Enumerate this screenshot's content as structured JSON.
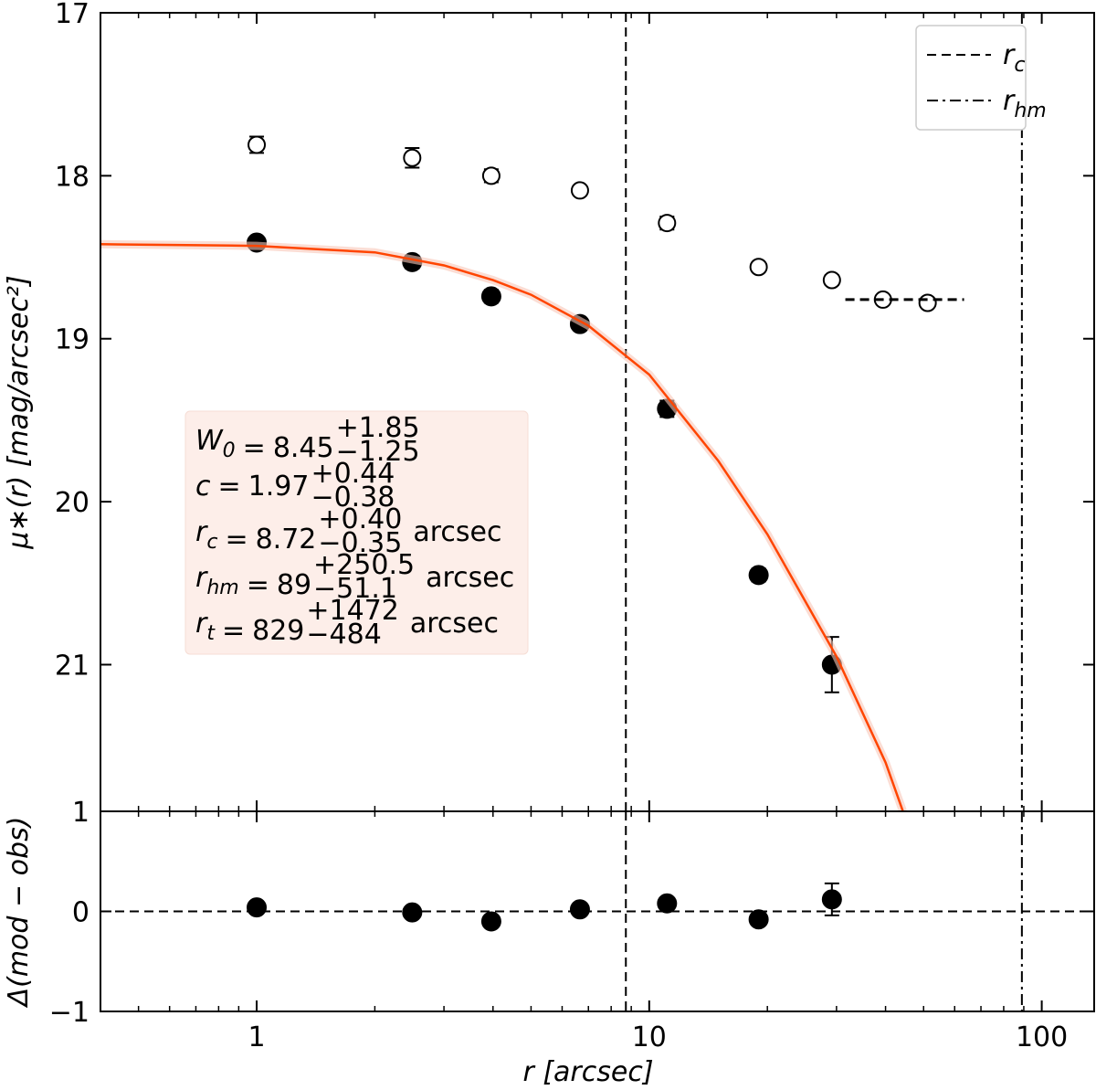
{
  "chart_data": [
    {
      "type": "scatter",
      "ylabel": "μ∗(r)  [mag/arcsec²]",
      "ylim": [
        17,
        21.9
      ],
      "y_inverted": true,
      "yticks": [
        17,
        18,
        19,
        20,
        21
      ],
      "xscale": "log",
      "xlim": [
        0.4,
        136
      ],
      "xticks": [
        1,
        10,
        100
      ],
      "xminorticks": [
        0.5,
        0.6,
        0.7,
        0.8,
        0.9,
        2,
        3,
        4,
        5,
        6,
        7,
        8,
        9,
        20,
        30,
        40,
        50,
        60,
        70,
        80,
        90
      ],
      "series": [
        {
          "type": "scatter",
          "marker": "filled",
          "color": "#000000",
          "x": [
            1,
            2.49,
            3.96,
            6.66,
            11.1,
            19.0,
            29.2
          ],
          "values": [
            18.41,
            18.53,
            18.74,
            18.91,
            19.43,
            20.45,
            21.0
          ],
          "errors": [
            0.03,
            0.04,
            0.04,
            0.02,
            0.05,
            0.04,
            0.17
          ]
        },
        {
          "type": "scatter",
          "marker": "open",
          "color": "#000000",
          "x": [
            1,
            2.49,
            3.96,
            6.66,
            11.1,
            19.0,
            29.2,
            39.4,
            51.2
          ],
          "values": [
            17.81,
            17.89,
            18.0,
            18.09,
            18.29,
            18.56,
            18.64,
            18.76,
            18.78
          ],
          "errors": [
            0.05,
            0.06,
            0.04,
            0.03,
            0.04,
            0.02,
            0.03,
            0.02,
            0.02
          ]
        },
        {
          "type": "line",
          "color": "#ff4500",
          "band_color": "#f8c6b8",
          "x": [
            0.4,
            1,
            2,
            3,
            4,
            5,
            7,
            10,
            15,
            20,
            30,
            40,
            44.3
          ],
          "values": [
            18.42,
            18.43,
            18.47,
            18.55,
            18.64,
            18.73,
            18.92,
            19.22,
            19.75,
            20.2,
            20.95,
            21.6,
            21.9
          ]
        },
        {
          "type": "line",
          "color": "#000000",
          "style": "dashed",
          "x": [
            31.6,
            63.4
          ],
          "values": [
            18.76,
            18.76
          ]
        }
      ],
      "vlines": [
        {
          "x": 8.72,
          "style": "dashed",
          "label": {
            "base": "r",
            "sub": "c"
          }
        },
        {
          "x": 89,
          "style": "dashdot",
          "label": {
            "base": "r",
            "sub": "hm"
          }
        }
      ],
      "legend": "upper right",
      "annotation": {
        "relation": "=",
        "params": [
          {
            "symbol": "W",
            "sub": "0",
            "value": "8.45",
            "plus": "+1.85",
            "minus": "−1.25"
          },
          {
            "symbol": "c",
            "value": "1.97",
            "plus": "+0.44",
            "minus": "−0.38"
          },
          {
            "symbol": "r",
            "sub": "c",
            "value": "8.72",
            "plus": "+0.40",
            "minus": "−0.35",
            "unit": "arcsec"
          },
          {
            "symbol": "r",
            "sub": "hm",
            "value": "89",
            "plus": "+250.5",
            "minus": "−51.1",
            "unit": "arcsec"
          },
          {
            "symbol": "r",
            "sub": "t",
            "value": "829",
            "plus": "+1472",
            "minus": "−484",
            "unit": "arcsec"
          }
        ]
      }
    },
    {
      "type": "scatter",
      "ylabel": "Δ(mod − obs)",
      "xlabel": "r  [arcsec]",
      "ylim": [
        -1,
        1
      ],
      "yticks": [
        {
          "value": -1,
          "label": "−1"
        },
        0,
        1
      ],
      "hline": 0,
      "xscale": "log",
      "xlim": [
        0.4,
        136
      ],
      "xticks": [
        1,
        10,
        100
      ],
      "xminorticks": [
        0.5,
        0.6,
        0.7,
        0.8,
        0.9,
        2,
        3,
        4,
        5,
        6,
        7,
        8,
        9,
        20,
        30,
        40,
        50,
        60,
        70,
        80,
        90
      ],
      "series": [
        {
          "type": "scatter",
          "marker": "filled",
          "color": "#000000",
          "x": [
            1,
            2.49,
            3.96,
            6.66,
            11.1,
            19.0,
            29.2
          ],
          "values": [
            0.04,
            -0.01,
            -0.1,
            0.02,
            0.08,
            -0.08,
            0.12
          ],
          "errors": [
            0.02,
            0.03,
            0.03,
            0.02,
            0.03,
            0.03,
            0.16
          ]
        }
      ]
    }
  ]
}
